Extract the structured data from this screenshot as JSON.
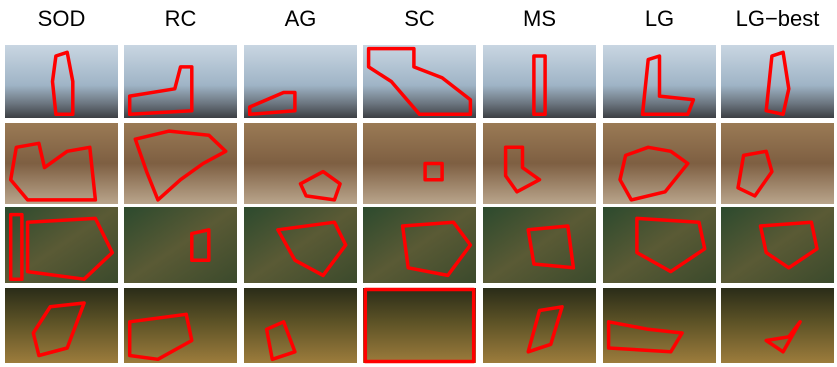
{
  "columns": [
    "SOD",
    "RC",
    "AG",
    "SC",
    "MS",
    "LG",
    "LG−best"
  ]
}
